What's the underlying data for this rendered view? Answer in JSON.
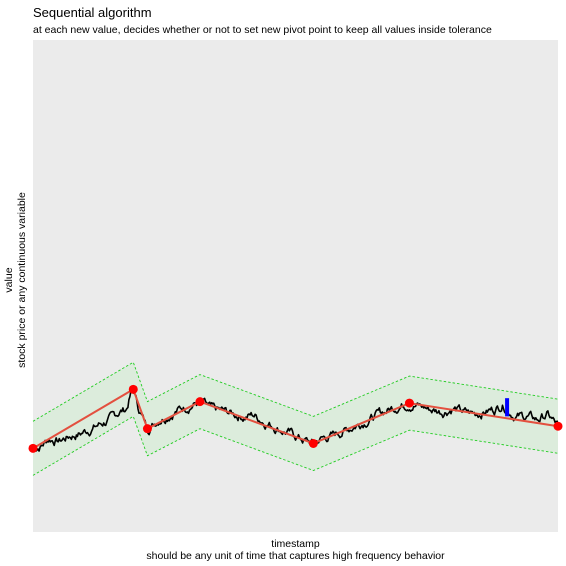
{
  "chart_data": {
    "type": "line",
    "title": "Sequential algorithm",
    "subtitle": "at each new value, decides whether or not to set new pivot point to keep all values inside tolerance",
    "ylabel": [
      "value",
      "stock price or any continuous variable"
    ],
    "xlabel": [
      "timestamp",
      "should be any unit of time that captures high frequency behavior"
    ],
    "axis_ticks": false,
    "grid": false,
    "ylim": [
      0,
      1
    ],
    "xlim": [
      0,
      1
    ],
    "colors": {
      "panel": "#ebebeb",
      "series": "#000000",
      "pivot_line": "#e3503f",
      "pivot_points": "#ff0000",
      "tolerance": "#22cc22",
      "tolerance_fill": "#dcecdc",
      "highlight": "#0000ff"
    },
    "tolerance": 0.055,
    "pivots": [
      {
        "x": 0.0,
        "y": 0.17
      },
      {
        "x": 0.191,
        "y": 0.29
      },
      {
        "x": 0.218,
        "y": 0.21
      },
      {
        "x": 0.318,
        "y": 0.265
      },
      {
        "x": 0.534,
        "y": 0.18
      },
      {
        "x": 0.717,
        "y": 0.262
      },
      {
        "x": 1.0,
        "y": 0.215
      }
    ],
    "series_control": [
      [
        0.0,
        0.17
      ],
      [
        0.015,
        0.175
      ],
      [
        0.03,
        0.19
      ],
      [
        0.05,
        0.185
      ],
      [
        0.07,
        0.195
      ],
      [
        0.09,
        0.2
      ],
      [
        0.11,
        0.21
      ],
      [
        0.13,
        0.22
      ],
      [
        0.15,
        0.23
      ],
      [
        0.165,
        0.245
      ],
      [
        0.178,
        0.25
      ],
      [
        0.186,
        0.28
      ],
      [
        0.191,
        0.29
      ],
      [
        0.2,
        0.255
      ],
      [
        0.21,
        0.23
      ],
      [
        0.218,
        0.21
      ],
      [
        0.24,
        0.23
      ],
      [
        0.26,
        0.24
      ],
      [
        0.28,
        0.25
      ],
      [
        0.3,
        0.258
      ],
      [
        0.318,
        0.265
      ],
      [
        0.34,
        0.248
      ],
      [
        0.36,
        0.245
      ],
      [
        0.38,
        0.24
      ],
      [
        0.4,
        0.235
      ],
      [
        0.42,
        0.238
      ],
      [
        0.44,
        0.225
      ],
      [
        0.46,
        0.215
      ],
      [
        0.48,
        0.205
      ],
      [
        0.5,
        0.195
      ],
      [
        0.52,
        0.185
      ],
      [
        0.534,
        0.18
      ],
      [
        0.55,
        0.19
      ],
      [
        0.57,
        0.195
      ],
      [
        0.59,
        0.205
      ],
      [
        0.61,
        0.215
      ],
      [
        0.63,
        0.225
      ],
      [
        0.65,
        0.235
      ],
      [
        0.67,
        0.245
      ],
      [
        0.69,
        0.255
      ],
      [
        0.717,
        0.262
      ],
      [
        0.74,
        0.255
      ],
      [
        0.76,
        0.248
      ],
      [
        0.78,
        0.245
      ],
      [
        0.8,
        0.252
      ],
      [
        0.82,
        0.243
      ],
      [
        0.84,
        0.24
      ],
      [
        0.86,
        0.245
      ],
      [
        0.88,
        0.25
      ],
      [
        0.895,
        0.26
      ],
      [
        0.905,
        0.25
      ],
      [
        0.92,
        0.235
      ],
      [
        0.94,
        0.235
      ],
      [
        0.96,
        0.228
      ],
      [
        0.98,
        0.238
      ],
      [
        1.0,
        0.215
      ]
    ],
    "highlight_segment": {
      "x": 0.903,
      "y": [
        0.235,
        0.272
      ]
    }
  }
}
